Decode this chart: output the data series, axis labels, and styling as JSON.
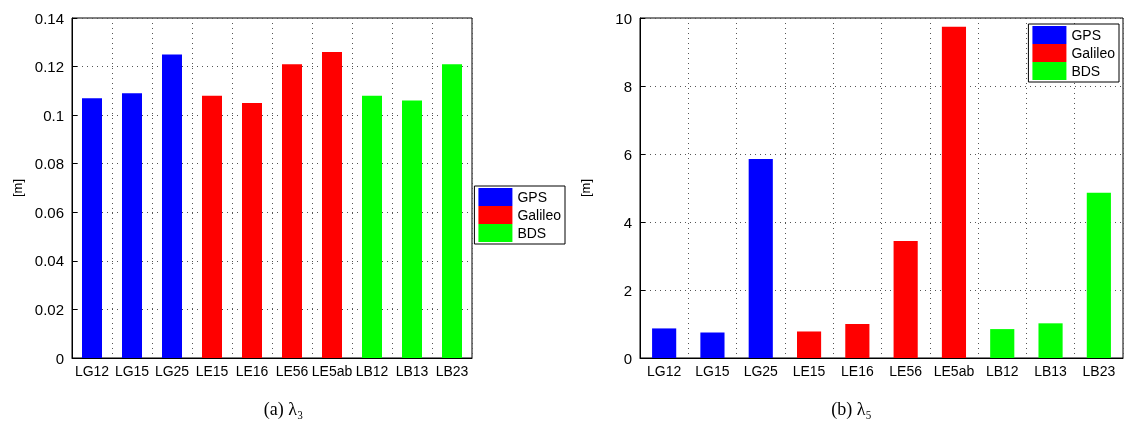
{
  "chart_data": [
    {
      "type": "bar",
      "ylabel": "[m]",
      "categories": [
        "LG12",
        "LG15",
        "LG25",
        "LE15",
        "LE16",
        "LE56",
        "LE5ab",
        "LB12",
        "LB13",
        "LB23"
      ],
      "series": [
        {
          "name": "GPS",
          "color": "#0000ff",
          "values": [
            0.107,
            0.109,
            0.125,
            null,
            null,
            null,
            null,
            null,
            null,
            null
          ]
        },
        {
          "name": "Galileo",
          "color": "#ff0000",
          "values": [
            null,
            null,
            null,
            0.108,
            0.105,
            0.121,
            0.126,
            null,
            null,
            null
          ]
        },
        {
          "name": "BDS",
          "color": "#00ff00",
          "values": [
            null,
            null,
            null,
            null,
            null,
            null,
            null,
            0.108,
            0.106,
            0.121
          ]
        }
      ],
      "ylim": [
        0,
        0.14
      ],
      "yticks": [
        0,
        0.02,
        0.04,
        0.06,
        0.08,
        0.1,
        0.12,
        0.14
      ],
      "grid": true,
      "legend": "right",
      "annotations": [
        "(a) λ₃"
      ]
    },
    {
      "type": "bar",
      "ylabel": "[m]",
      "categories": [
        "LG12",
        "LG15",
        "LG25",
        "LE15",
        "LE16",
        "LE56",
        "LE5ab",
        "LB12",
        "LB13",
        "LB23"
      ],
      "series": [
        {
          "name": "GPS",
          "color": "#0000ff",
          "values": [
            0.87,
            0.75,
            5.85,
            null,
            null,
            null,
            null,
            null,
            null,
            null
          ]
        },
        {
          "name": "Galileo",
          "color": "#ff0000",
          "values": [
            null,
            null,
            null,
            0.78,
            1.0,
            3.44,
            9.74,
            null,
            null,
            null
          ]
        },
        {
          "name": "BDS",
          "color": "#00ff00",
          "values": [
            null,
            null,
            null,
            null,
            null,
            null,
            null,
            0.85,
            1.02,
            4.86
          ]
        }
      ],
      "ylim": [
        0,
        10
      ],
      "yticks": [
        0,
        2,
        4,
        6,
        8,
        10
      ],
      "grid": true,
      "legend": "top right",
      "annotations": [
        "(b) λ₅"
      ]
    }
  ]
}
